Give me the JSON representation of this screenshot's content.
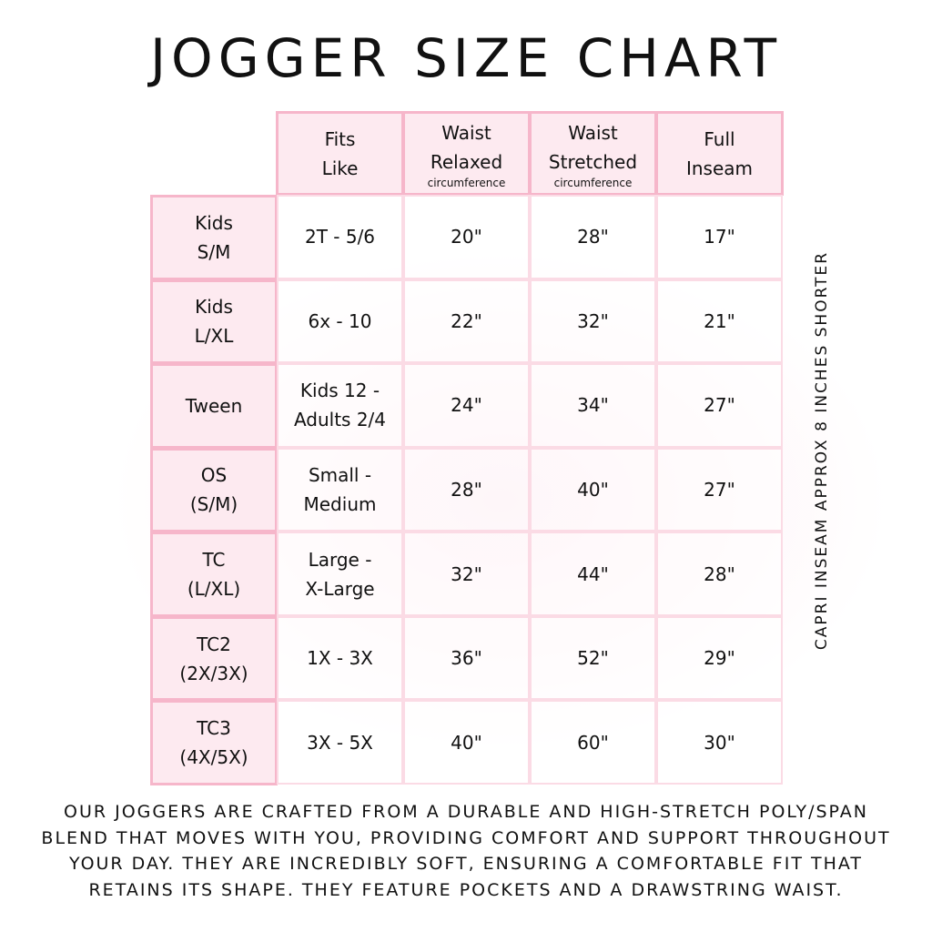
{
  "title": "JOGGER SIZE CHART",
  "headers": [
    {
      "line1": "Fits",
      "line2": "Like",
      "sub": ""
    },
    {
      "line1": "Waist",
      "line2": "Relaxed",
      "sub": "circumference"
    },
    {
      "line1": "Waist",
      "line2": "Stretched",
      "sub": "circumference"
    },
    {
      "line1": "Full",
      "line2": "Inseam",
      "sub": ""
    }
  ],
  "rows": [
    {
      "size1": "Kids",
      "size2": "S/M",
      "fits1": "2T - 5/6",
      "fits2": "",
      "relaxed": "20\"",
      "stretched": "28\"",
      "inseam": "17\""
    },
    {
      "size1": "Kids",
      "size2": "L/XL",
      "fits1": "6x - 10",
      "fits2": "",
      "relaxed": "22\"",
      "stretched": "32\"",
      "inseam": "21\""
    },
    {
      "size1": "Tween",
      "size2": "",
      "fits1": "Kids 12 -",
      "fits2": "Adults 2/4",
      "relaxed": "24\"",
      "stretched": "34\"",
      "inseam": "27\""
    },
    {
      "size1": "OS",
      "size2": "(S/M)",
      "fits1": "Small -",
      "fits2": "Medium",
      "relaxed": "28\"",
      "stretched": "40\"",
      "inseam": "27\""
    },
    {
      "size1": "TC",
      "size2": "(L/XL)",
      "fits1": "Large -",
      "fits2": "X-Large",
      "relaxed": "32\"",
      "stretched": "44\"",
      "inseam": "28\""
    },
    {
      "size1": "TC2",
      "size2": "(2X/3X)",
      "fits1": "1X - 3X",
      "fits2": "",
      "relaxed": "36\"",
      "stretched": "52\"",
      "inseam": "29\""
    },
    {
      "size1": "TC3",
      "size2": "(4X/5X)",
      "fits1": "3X - 5X",
      "fits2": "",
      "relaxed": "40\"",
      "stretched": "60\"",
      "inseam": "30\""
    }
  ],
  "side_note": "CAPRI INSEAM APPROX 8 INCHES SHORTER",
  "footer": "Our joggers are crafted from a durable and high-stretch poly/span blend that moves with you, providing comfort and support throughout your day. They are incredibly soft, ensuring a comfortable fit that retains its shape. They feature pockets and a drawstring waist.",
  "colors": {
    "header_bg": "#fdeaf0",
    "border": "#f6b6ca"
  }
}
